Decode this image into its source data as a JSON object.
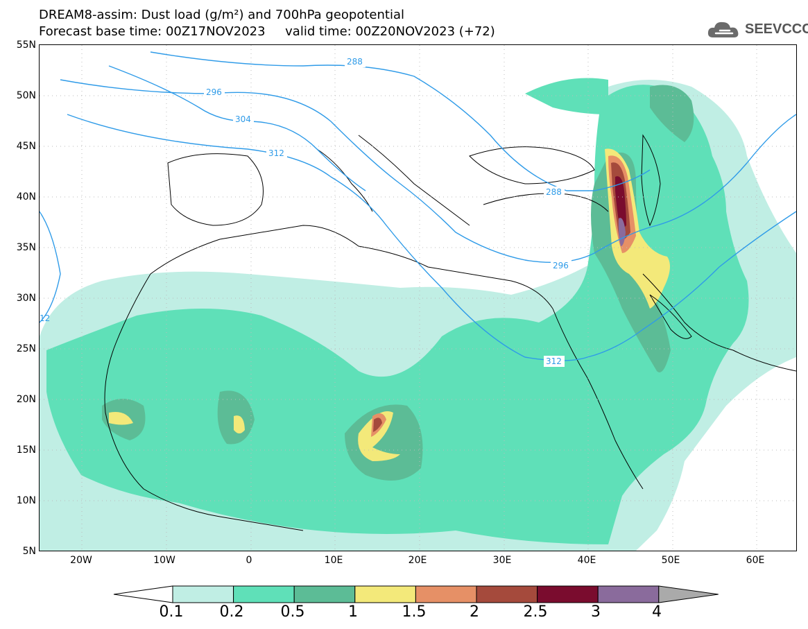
{
  "header": {
    "title_line1": "DREAM8-assim: Dust load (g/m²) and 700hPa geopotential",
    "title_line2": "Forecast base time: 00Z17NOV2023     valid time: 00Z20NOV2023 (+72)"
  },
  "logo": {
    "text": "SEEVCCC"
  },
  "map": {
    "lat_labels": [
      "55N",
      "50N",
      "45N",
      "40N",
      "35N",
      "30N",
      "25N",
      "20N",
      "15N",
      "10N",
      "5N"
    ],
    "lon_labels": [
      "20W",
      "10W",
      "0",
      "10E",
      "20E",
      "30E",
      "40E",
      "50E",
      "60E"
    ],
    "contour_labels": [
      "288",
      "296",
      "304",
      "312",
      "288",
      "296",
      "312",
      "12"
    ]
  },
  "colorbar": {
    "tick_labels": [
      "0.1",
      "0.2",
      "0.5",
      "1",
      "1.5",
      "2",
      "2.5",
      "3",
      "4"
    ],
    "colors": [
      "#c0eee4",
      "#5fe0b8",
      "#5cbc96",
      "#f3e97a",
      "#e69066",
      "#a54a3c",
      "#7a0c2e",
      "#8a6b9c"
    ],
    "under_color": "#ffffff",
    "over_color": "#aaaaaa"
  }
}
